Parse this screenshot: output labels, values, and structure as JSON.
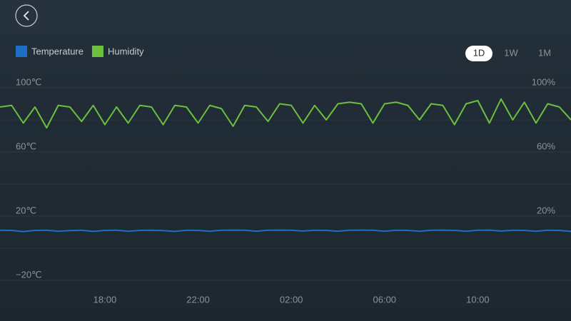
{
  "controls": {
    "ranges": [
      "1D",
      "1W",
      "1M"
    ],
    "selected": 0
  },
  "chart_data": {
    "type": "line",
    "x": [
      13.5,
      14,
      14.5,
      15,
      15.5,
      16,
      16.5,
      17,
      17.5,
      18,
      18.5,
      19,
      19.5,
      20,
      20.5,
      21,
      21.5,
      22,
      22.5,
      23,
      23.5,
      24,
      24.5,
      25,
      25.5,
      26,
      26.5,
      27,
      27.5,
      28,
      28.5,
      29,
      29.5,
      30,
      30.5,
      31,
      31.5,
      32,
      32.5,
      33,
      33.5,
      34,
      34.5,
      35,
      35.5,
      36,
      36.5,
      37,
      37.5,
      38
    ],
    "xlim": [
      13.5,
      38
    ],
    "xticks": [
      {
        "value": 18,
        "label": "18:00"
      },
      {
        "value": 22,
        "label": "22:00"
      },
      {
        "value": 26,
        "label": "02:00"
      },
      {
        "value": 30,
        "label": "06:00"
      },
      {
        "value": 34,
        "label": "10:00"
      }
    ],
    "ylim": [
      -20,
      100
    ],
    "yticks": [
      {
        "value": -20,
        "label": "−20℃"
      },
      {
        "value": 20,
        "label": "20℃"
      },
      {
        "value": 60,
        "label": "60℃"
      },
      {
        "value": 100,
        "label": "100℃"
      }
    ],
    "y2lim": [
      -20,
      100
    ],
    "y2ticks": [
      {
        "value": 20,
        "label": "20%"
      },
      {
        "value": 60,
        "label": "60%"
      },
      {
        "value": 100,
        "label": "100%"
      }
    ],
    "grid": true,
    "series": [
      {
        "name": "Temperature",
        "color": "#1f6fc5",
        "values": [
          11.2,
          11.1,
          10.4,
          11.1,
          11.2,
          10.6,
          11.0,
          11.2,
          10.5,
          11.1,
          11.2,
          10.6,
          11.1,
          11.2,
          11.0,
          10.5,
          11.2,
          11.1,
          10.6,
          11.2,
          11.3,
          11.2,
          10.6,
          11.2,
          11.3,
          11.2,
          10.7,
          11.2,
          11.1,
          10.6,
          11.2,
          11.3,
          11.2,
          10.6,
          11.2,
          11.1,
          10.6,
          11.2,
          11.3,
          11.1,
          10.6,
          11.2,
          11.3,
          10.7,
          11.2,
          11.1,
          10.6,
          11.2,
          11.1,
          10.5
        ]
      },
      {
        "name": "Humidity",
        "color": "#6cbf3f",
        "axis": "y2",
        "values": [
          88,
          89,
          78,
          88,
          75,
          89,
          88,
          79,
          89,
          77,
          88,
          78,
          89,
          88,
          77,
          89,
          88,
          78,
          89,
          87,
          76,
          89,
          88,
          79,
          90,
          89,
          78,
          89,
          80,
          90,
          91,
          90,
          78,
          90,
          91,
          89,
          80,
          90,
          89,
          77,
          90,
          92,
          78,
          93,
          80,
          91,
          78,
          90,
          88,
          80
        ]
      }
    ]
  }
}
